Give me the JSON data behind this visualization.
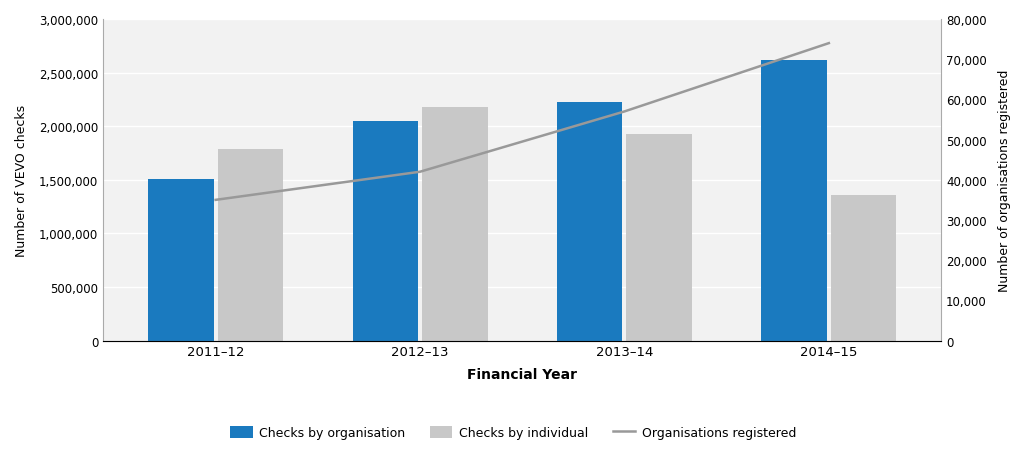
{
  "categories": [
    "2011–12",
    "2012–13",
    "2013–14",
    "2014–15"
  ],
  "checks_by_organisation": [
    1510000,
    2050000,
    2230000,
    2620000
  ],
  "checks_by_individual": [
    1790000,
    2180000,
    1930000,
    1360000
  ],
  "organisations_registered": [
    35000,
    42000,
    57000,
    74000
  ],
  "left_ylim": [
    0,
    3000000
  ],
  "left_yticks": [
    0,
    500000,
    1000000,
    1500000,
    2000000,
    2500000,
    3000000
  ],
  "right_ylim": [
    0,
    80000
  ],
  "right_yticks": [
    0,
    10000,
    20000,
    30000,
    40000,
    50000,
    60000,
    70000,
    80000
  ],
  "xlabel": "Financial Year",
  "ylabel_left": "Number of VEVO checks",
  "ylabel_right": "Number of organisations registered",
  "bar_color_blue": "#1a7abf",
  "bar_color_grey": "#c8c8c8",
  "line_color": "#999999",
  "plot_bg_color": "#f2f2f2",
  "legend_labels": [
    "Checks by organisation",
    "Checks by individual",
    "Organisations registered"
  ],
  "bar_width": 0.32,
  "figsize": [
    10.26,
    4.56
  ],
  "dpi": 100
}
